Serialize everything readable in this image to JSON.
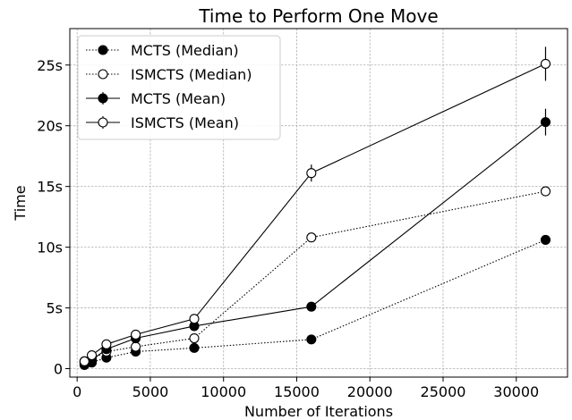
{
  "chart_data": {
    "type": "line",
    "title": "Time to Perform One Move",
    "xlabel": "Number of Iterations",
    "ylabel": "Time",
    "xlim": [
      -500,
      33500
    ],
    "ylim": [
      -0.7,
      28.0
    ],
    "x_ticks": [
      0,
      5000,
      10000,
      15000,
      20000,
      25000,
      30000
    ],
    "x_tick_labels": [
      "0",
      "5000",
      "10000",
      "15000",
      "20000",
      "25000",
      "30000"
    ],
    "y_ticks": [
      0,
      5,
      10,
      15,
      20,
      25
    ],
    "y_tick_labels": [
      "0",
      "5s",
      "10s",
      "15s",
      "20s",
      "25s"
    ],
    "grid": true,
    "legend_position": "top-left",
    "x": [
      500,
      1000,
      2000,
      4000,
      8000,
      16000,
      32000
    ],
    "series": [
      {
        "name": "MCTS (Median)",
        "style": "dotted",
        "marker": "filled",
        "values": [
          0.3,
          0.5,
          0.9,
          1.4,
          1.7,
          2.4,
          10.6
        ],
        "errors": [
          0,
          0,
          0,
          0,
          0,
          0,
          0
        ]
      },
      {
        "name": "ISMCTS (Median)",
        "style": "dotted",
        "marker": "open",
        "values": [
          0.6,
          0.8,
          1.4,
          1.8,
          2.5,
          10.8,
          14.6
        ],
        "errors": [
          0,
          0,
          0,
          0,
          0,
          0,
          0
        ]
      },
      {
        "name": "MCTS (Mean)",
        "style": "solid",
        "marker": "filled",
        "values": [
          0.45,
          0.7,
          1.6,
          2.5,
          3.5,
          5.1,
          20.3
        ],
        "errors": [
          0.05,
          0.05,
          0.1,
          0.1,
          0.15,
          0.2,
          1.1
        ]
      },
      {
        "name": "ISMCTS (Mean)",
        "style": "solid",
        "marker": "open",
        "values": [
          0.6,
          1.1,
          2.0,
          2.8,
          4.1,
          16.1,
          25.1
        ],
        "errors": [
          0.05,
          0.05,
          0.1,
          0.1,
          0.2,
          0.7,
          1.4
        ]
      }
    ],
    "colors": {
      "line": "#000000",
      "filled_marker": "#000000",
      "open_marker": "#ffffff",
      "grid": "#b0b0b0"
    }
  }
}
